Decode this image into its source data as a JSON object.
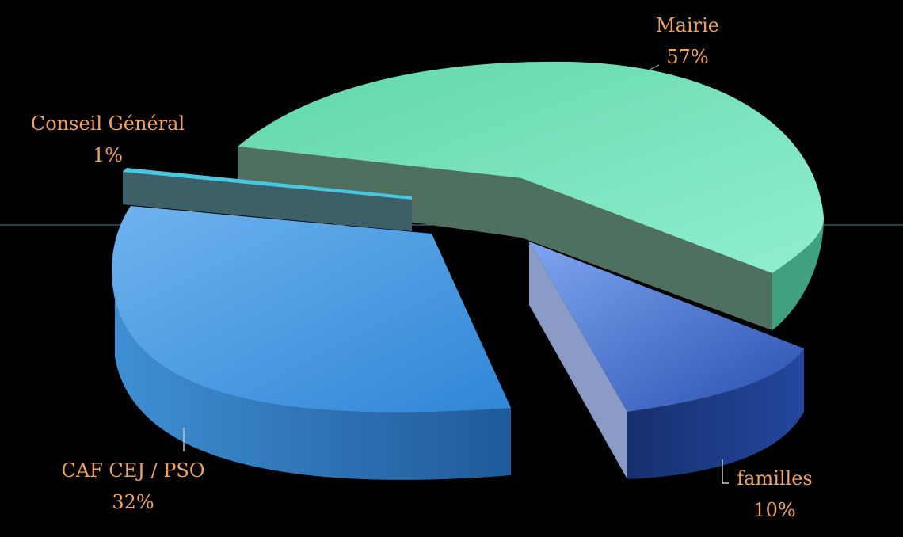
{
  "chart_data": {
    "type": "pie",
    "style": "3d-exploded",
    "slices": [
      {
        "label": "Mairie",
        "value": 57,
        "value_label": "57%",
        "color": "#6fe0b5"
      },
      {
        "label": "familles",
        "value": 10,
        "value_label": "10%",
        "color": "#2a4fb0"
      },
      {
        "label": "CAF CEJ / PSO",
        "value": 32,
        "value_label": "32%",
        "color": "#3f90d8"
      },
      {
        "label": "Conseil Général",
        "value": 1,
        "value_label": "1%",
        "color": "#3fbfd8"
      }
    ],
    "label_color": "#f0a35e",
    "background": "#000000"
  }
}
